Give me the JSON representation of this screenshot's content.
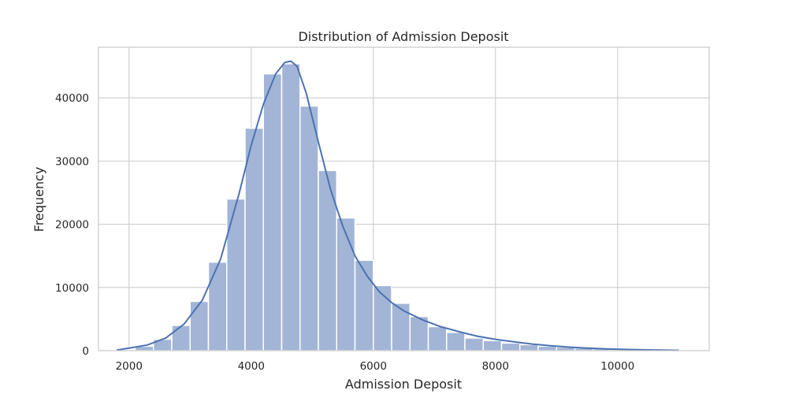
{
  "chart_data": {
    "type": "bar",
    "title": "Distribution of Admission Deposit",
    "xlabel": "Admission Deposit",
    "ylabel": "Frequency",
    "xlim": [
      1500,
      11500
    ],
    "ylim": [
      0,
      48000
    ],
    "xticks": [
      2000,
      4000,
      6000,
      8000,
      10000
    ],
    "yticks": [
      0,
      10000,
      20000,
      30000,
      40000
    ],
    "grid": true,
    "bin_edges": [
      1800,
      2100,
      2400,
      2700,
      3000,
      3300,
      3600,
      3900,
      4200,
      4500,
      4800,
      5100,
      5400,
      5700,
      6000,
      6300,
      6600,
      6900,
      7200,
      7500,
      7800,
      8100,
      8400,
      8700,
      9000,
      9300,
      9600,
      9900,
      10200,
      10500,
      10800,
      11100
    ],
    "values": [
      150,
      700,
      1800,
      4000,
      7800,
      14000,
      24000,
      35200,
      43800,
      45400,
      38700,
      28500,
      21000,
      14300,
      10300,
      7500,
      5400,
      3800,
      2900,
      2000,
      1600,
      1200,
      950,
      700,
      550,
      420,
      330,
      250,
      180,
      120,
      80
    ],
    "kde": {
      "x": [
        1800,
        2000,
        2300,
        2600,
        2900,
        3200,
        3500,
        3800,
        4000,
        4200,
        4400,
        4550,
        4650,
        4750,
        4900,
        5100,
        5300,
        5500,
        5700,
        5900,
        6100,
        6300,
        6500,
        6800,
        7100,
        7400,
        7700,
        8000,
        8300,
        8600,
        8900,
        9200,
        9500,
        9800,
        10100,
        10400,
        10700,
        11000
      ],
      "y": [
        100,
        400,
        900,
        2000,
        4200,
        8000,
        14500,
        24800,
        32500,
        39000,
        43800,
        45600,
        45800,
        45000,
        40800,
        33000,
        25500,
        19700,
        15000,
        11800,
        9300,
        7600,
        6300,
        4900,
        3800,
        3000,
        2300,
        1800,
        1400,
        1050,
        780,
        560,
        400,
        290,
        200,
        140,
        90,
        50
      ]
    },
    "colors": {
      "bar": "#a2b5d7",
      "bar_edge": "#ffffff",
      "line": "#4c72b0",
      "grid": "#cccccc",
      "frame": "#cccccc"
    }
  }
}
